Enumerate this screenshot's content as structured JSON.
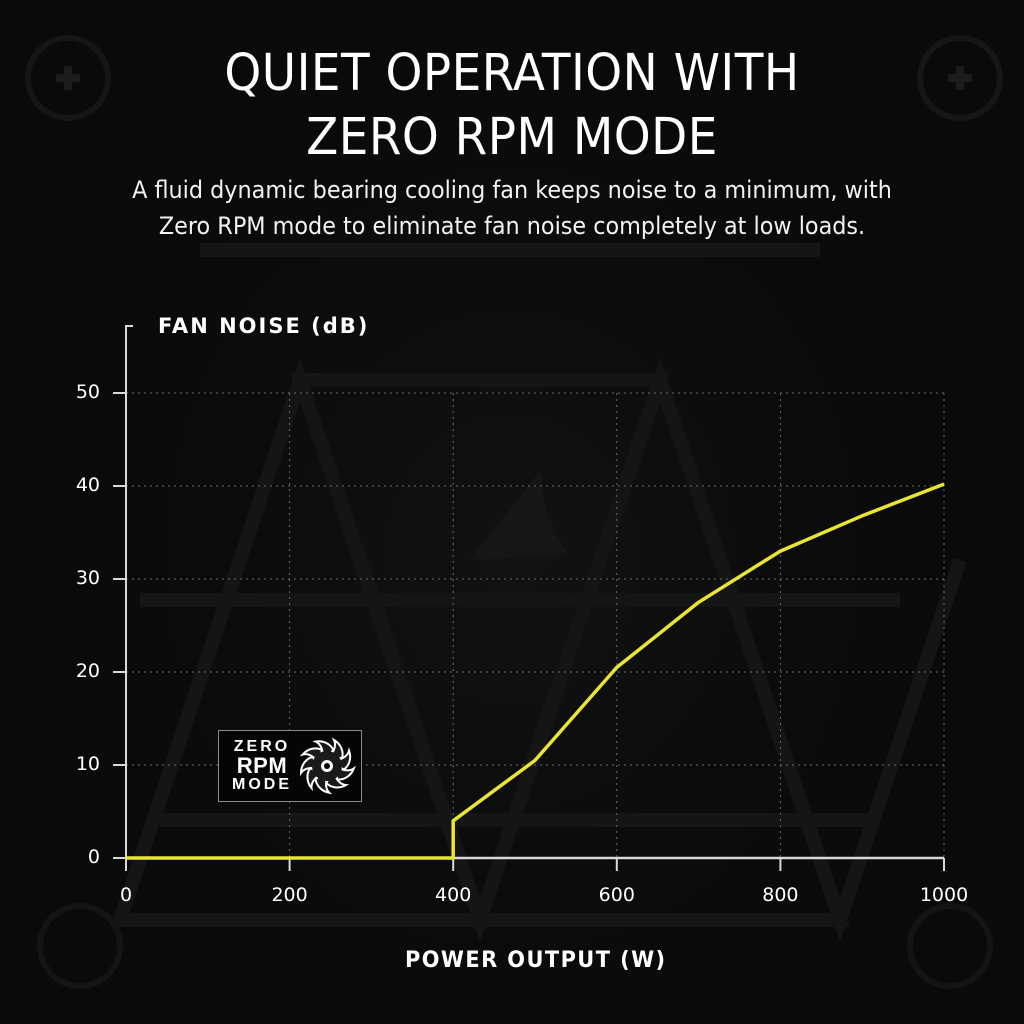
{
  "header": {
    "title_line1": "QUIET OPERATION WITH",
    "title_line2": "ZERO RPM MODE",
    "subtitle_line1": "A fluid dynamic bearing cooling fan keeps noise to a minimum, with",
    "subtitle_line2": "Zero RPM mode to eliminate fan noise completely at low loads."
  },
  "badge": {
    "line1": "ZERO",
    "line2": "RPM",
    "line3": "MODE",
    "icon": "fan-icon"
  },
  "colors": {
    "background": "#0b0b0b",
    "line": "#e8e534",
    "axis": "#d8d8d8",
    "grid": "#6a6a6a",
    "text": "#ffffff"
  },
  "chart_data": {
    "type": "line",
    "title": "QUIET OPERATION WITH ZERO RPM MODE",
    "xlabel": "POWER OUTPUT (W)",
    "ylabel": "FAN NOISE (dB)",
    "xlim": [
      0,
      1000
    ],
    "ylim": [
      0,
      50
    ],
    "xticks": [
      "0",
      "200",
      "400",
      "600",
      "800",
      "1000"
    ],
    "yticks": [
      "0",
      "10",
      "20",
      "30",
      "40",
      "50"
    ],
    "grid": true,
    "grid_style": "dotted",
    "legend": null,
    "annotation": "ZERO RPM MODE",
    "series": [
      {
        "name": "Fan noise",
        "x": [
          0,
          400,
          400,
          500,
          600,
          700,
          800,
          900,
          1000
        ],
        "y": [
          0,
          0,
          4,
          10.5,
          20.5,
          27.5,
          33,
          36.8,
          40.2
        ]
      }
    ]
  }
}
